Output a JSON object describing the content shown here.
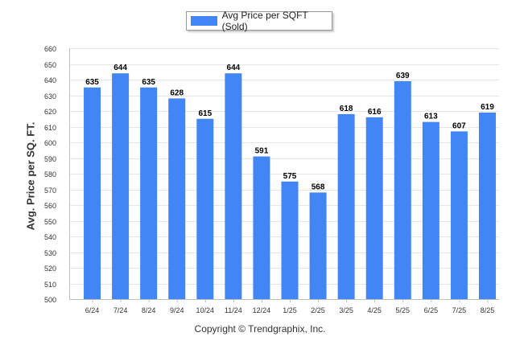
{
  "legend": {
    "label": "Avg Price per SQFT (Sold)",
    "color": "#4285F4"
  },
  "footer": {
    "copyright": "Copyright © Trendgraphix, Inc."
  },
  "chart_data": {
    "type": "bar",
    "title": "",
    "xlabel": "",
    "ylabel": "Avg. Price per SQ. FT.",
    "ylim": [
      500,
      660
    ],
    "ytick_step": 10,
    "grid": true,
    "legend_position": "top-center",
    "categories": [
      "6/24",
      "7/24",
      "8/24",
      "9/24",
      "10/24",
      "11/24",
      "12/24",
      "1/25",
      "2/25",
      "3/25",
      "4/25",
      "5/25",
      "6/25",
      "7/25",
      "8/25"
    ],
    "series": [
      {
        "name": "Avg Price per SQFT (Sold)",
        "color": "#4285F4",
        "values": [
          635,
          644,
          635,
          628,
          615,
          644,
          591,
          575,
          568,
          618,
          616,
          639,
          613,
          607,
          619
        ]
      }
    ]
  }
}
